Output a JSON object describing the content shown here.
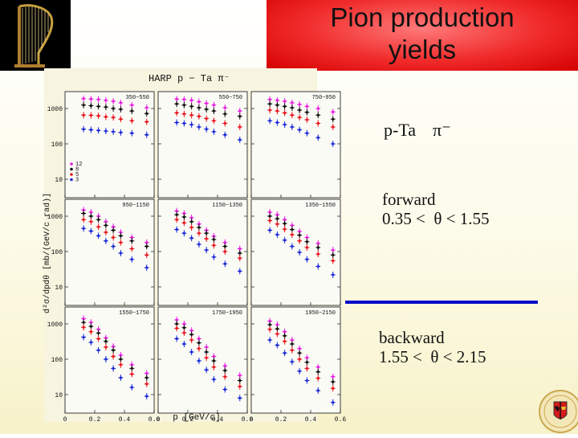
{
  "slide": {
    "title_line1": "Pion production",
    "title_line2": "yields",
    "reaction": "p-Ta",
    "pion": "π⁻",
    "forward_label": "forward",
    "forward_range": "0.35 <  θ < 1.55",
    "backward_label": "backward",
    "backward_range": "1.55 <  θ < 2.15"
  },
  "chart_data": {
    "type": "scatter",
    "title": "HARP  p − Ta  π⁻",
    "xlabel": "p [GeV/c]",
    "ylabel": "d²σ/dpdθ [mb/(GeV/c rad)]",
    "y_log": true,
    "ylim": [
      3,
      3000
    ],
    "xlim": [
      0,
      0.6
    ],
    "x_ticks": [
      "0",
      "0.2",
      "0.4",
      "0.6"
    ],
    "y_ticks": [
      "1000",
      "100",
      "10"
    ],
    "legend": {
      "placement": "left-bottom of top-left panel",
      "entries": [
        "12",
        "8",
        "5",
        "3"
      ]
    },
    "series_colors": {
      "12": "#e81ce0",
      "8": "#111111",
      "5": "#e8141c",
      "3": "#1a2ad6"
    },
    "panels": [
      {
        "label": "350−550",
        "momentum": [
          0.125,
          0.175,
          0.225,
          0.275,
          0.325,
          0.375,
          0.45,
          0.55
        ],
        "series": [
          {
            "name": "12",
            "values": [
              1900,
              1850,
              1800,
              1700,
              1600,
              1450,
              1250,
              1050
            ]
          },
          {
            "name": "8",
            "values": [
              1250,
              1200,
              1150,
              1100,
              1000,
              950,
              850,
              720
            ]
          },
          {
            "name": "5",
            "values": [
              650,
              640,
              620,
              580,
              560,
              500,
              450,
              420
            ]
          },
          {
            "name": "3",
            "values": [
              260,
              250,
              240,
              230,
              220,
              210,
              200,
              180
            ]
          }
        ]
      },
      {
        "label": "550−750",
        "momentum": [
          0.125,
          0.175,
          0.225,
          0.275,
          0.325,
          0.375,
          0.45,
          0.55
        ],
        "series": [
          {
            "name": "12",
            "values": [
              1850,
              1800,
              1700,
              1550,
              1400,
              1250,
              1050,
              850
            ]
          },
          {
            "name": "8",
            "values": [
              1350,
              1250,
              1150,
              1050,
              950,
              850,
              700,
              600
            ]
          },
          {
            "name": "5",
            "values": [
              750,
              700,
              650,
              600,
              520,
              450,
              380,
              300
            ]
          },
          {
            "name": "3",
            "values": [
              400,
              380,
              350,
              300,
              260,
              220,
              180,
              130
            ]
          }
        ]
      },
      {
        "label": "750−950",
        "momentum": [
          0.125,
          0.175,
          0.225,
          0.275,
          0.325,
          0.375,
          0.45,
          0.55
        ],
        "series": [
          {
            "name": "12",
            "values": [
              1800,
              1700,
              1600,
              1450,
              1300,
              1150,
              1000,
              800
            ]
          },
          {
            "name": "8",
            "values": [
              1350,
              1250,
              1150,
              1050,
              900,
              780,
              650,
              500
            ]
          },
          {
            "name": "5",
            "values": [
              900,
              850,
              750,
              650,
              560,
              480,
              380,
              300
            ]
          },
          {
            "name": "3",
            "values": [
              450,
              400,
              350,
              300,
              250,
              200,
              150,
              100
            ]
          }
        ]
      },
      {
        "label": "950−1150",
        "momentum": [
          0.125,
          0.175,
          0.225,
          0.275,
          0.325,
          0.375,
          0.45,
          0.55
        ],
        "series": [
          {
            "name": "12",
            "values": [
              1500,
              1300,
              1000,
              700,
              500,
              350,
              250,
              180
            ]
          },
          {
            "name": "8",
            "values": [
              1200,
              1000,
              800,
              550,
              400,
              280,
              200,
              140
            ]
          },
          {
            "name": "5",
            "values": [
              800,
              700,
              500,
              350,
              250,
              180,
              120,
              80
            ]
          },
          {
            "name": "3",
            "values": [
              450,
              380,
              280,
              200,
              140,
              90,
              60,
              35
            ]
          }
        ]
      },
      {
        "label": "1150−1350",
        "momentum": [
          0.125,
          0.175,
          0.225,
          0.275,
          0.325,
          0.375,
          0.45,
          0.55
        ],
        "series": [
          {
            "name": "12",
            "values": [
              1400,
              1200,
              900,
              600,
              400,
              270,
              180,
              120
            ]
          },
          {
            "name": "8",
            "values": [
              1100,
              950,
              700,
              480,
              330,
              220,
              140,
              90
            ]
          },
          {
            "name": "5",
            "values": [
              800,
              650,
              480,
              330,
              230,
              150,
              100,
              65
            ]
          },
          {
            "name": "3",
            "values": [
              420,
              330,
              240,
              160,
              110,
              70,
              45,
              28
            ]
          }
        ]
      },
      {
        "label": "1350−1550",
        "momentum": [
          0.125,
          0.175,
          0.225,
          0.275,
          0.325,
          0.375,
          0.45,
          0.55
        ],
        "series": [
          {
            "name": "12",
            "values": [
              1300,
              1100,
              800,
              550,
              370,
              250,
              170,
              110
            ]
          },
          {
            "name": "8",
            "values": [
              1000,
              850,
              620,
              420,
              290,
              190,
              130,
              80
            ]
          },
          {
            "name": "5",
            "values": [
              750,
              600,
              430,
              300,
              200,
              130,
              85,
              55
            ]
          },
          {
            "name": "3",
            "values": [
              400,
              300,
              210,
              140,
              95,
              60,
              38,
              22
            ]
          }
        ]
      },
      {
        "label": "1550−1750",
        "momentum": [
          0.125,
          0.175,
          0.225,
          0.275,
          0.325,
          0.375,
          0.45,
          0.55
        ],
        "series": [
          {
            "name": "12",
            "values": [
              1400,
              1100,
              700,
              400,
              230,
              130,
              70,
              40
            ]
          },
          {
            "name": "8",
            "values": [
              1100,
              850,
              550,
              320,
              180,
              100,
              55,
              30
            ]
          },
          {
            "name": "5",
            "values": [
              800,
              600,
              380,
              220,
              120,
              70,
              38,
              20
            ]
          },
          {
            "name": "3",
            "values": [
              420,
              300,
              180,
              100,
              55,
              30,
              16,
              9
            ]
          }
        ]
      },
      {
        "label": "1750−1950",
        "momentum": [
          0.125,
          0.175,
          0.225,
          0.275,
          0.325,
          0.375,
          0.45,
          0.55
        ],
        "series": [
          {
            "name": "12",
            "values": [
              1300,
              1000,
              650,
              380,
              220,
              120,
              65,
              35
            ]
          },
          {
            "name": "8",
            "values": [
              1000,
              780,
              500,
              290,
              160,
              90,
              48,
              25
            ]
          },
          {
            "name": "5",
            "values": [
              750,
              560,
              350,
              200,
              110,
              60,
              32,
              17
            ]
          },
          {
            "name": "3",
            "values": [
              380,
              270,
              160,
              90,
              50,
              27,
              14,
              8
            ]
          }
        ]
      },
      {
        "label": "1950−2150",
        "momentum": [
          0.125,
          0.175,
          0.225,
          0.275,
          0.325,
          0.375,
          0.45,
          0.55
        ],
        "series": [
          {
            "name": "12",
            "values": [
              1200,
              950,
              600,
              350,
              200,
              110,
              60,
              32
            ]
          },
          {
            "name": "8",
            "values": [
              950,
              720,
              460,
              270,
              150,
              82,
              44,
              23
            ]
          },
          {
            "name": "5",
            "values": [
              700,
              520,
              320,
              180,
              100,
              55,
              29,
              15
            ]
          },
          {
            "name": "3",
            "values": [
              350,
              250,
              150,
              85,
              46,
              25,
              13,
              6
            ]
          }
        ]
      }
    ]
  }
}
